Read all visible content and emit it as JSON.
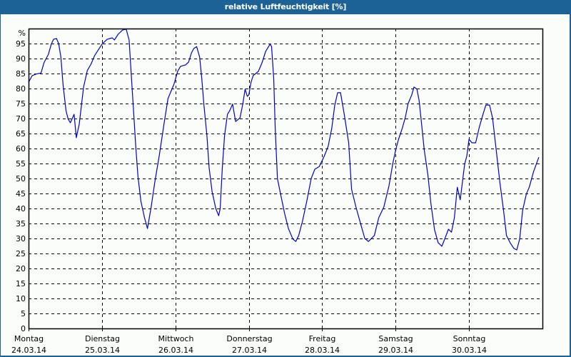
{
  "window": {
    "title": "relative Luftfeuchtigkeit [%]"
  },
  "colors": {
    "frame": "#1c6296",
    "background": "#fbfdfb",
    "line": "#0000cc",
    "grid": "#000000",
    "axis": "#000000"
  },
  "chart_data": {
    "type": "line",
    "title": "relative Luftfeuchtigkeit [%]",
    "xlabel": "",
    "ylabel": "%",
    "ylim": [
      0,
      100
    ],
    "y_ticks": [
      0,
      5,
      10,
      15,
      20,
      25,
      30,
      35,
      40,
      45,
      50,
      55,
      60,
      65,
      70,
      75,
      80,
      85,
      90,
      95
    ],
    "y_unit_label": "%",
    "grid": true,
    "grid_style": "dashed",
    "legend": null,
    "x_categories": [
      {
        "day": "Montag",
        "date": "24.03.14"
      },
      {
        "day": "Dienstag",
        "date": "25.03.14"
      },
      {
        "day": "Mittwoch",
        "date": "26.03.14"
      },
      {
        "day": "Donnerstag",
        "date": "27.03.14"
      },
      {
        "day": "Freitag",
        "date": "28.03.14"
      },
      {
        "day": "Samstag",
        "date": "29.03.14"
      },
      {
        "day": "Sonntag",
        "date": "30.03.14"
      }
    ],
    "x_unit": "days since 24.03.14 00:00",
    "series": [
      {
        "name": "relative Luftfeuchtigkeit",
        "points": [
          [
            0.0,
            82.1
          ],
          [
            0.05,
            84.3
          ],
          [
            0.1,
            84.8
          ],
          [
            0.17,
            85.2
          ],
          [
            0.21,
            88.6
          ],
          [
            0.27,
            91.4
          ],
          [
            0.31,
            94.8
          ],
          [
            0.34,
            96.4
          ],
          [
            0.38,
            96.7
          ],
          [
            0.41,
            95.0
          ],
          [
            0.44,
            90.5
          ],
          [
            0.47,
            81.4
          ],
          [
            0.51,
            72.6
          ],
          [
            0.54,
            69.8
          ],
          [
            0.57,
            68.6
          ],
          [
            0.62,
            71.4
          ],
          [
            0.65,
            63.6
          ],
          [
            0.69,
            68.1
          ],
          [
            0.75,
            80.5
          ],
          [
            0.8,
            86.0
          ],
          [
            0.85,
            88.1
          ],
          [
            0.9,
            91.0
          ],
          [
            1.0,
            94.8
          ],
          [
            1.07,
            96.4
          ],
          [
            1.14,
            96.9
          ],
          [
            1.17,
            96.2
          ],
          [
            1.22,
            98.1
          ],
          [
            1.28,
            99.5
          ],
          [
            1.33,
            99.8
          ],
          [
            1.37,
            96.2
          ],
          [
            1.39,
            88.1
          ],
          [
            1.43,
            72.6
          ],
          [
            1.46,
            60.7
          ],
          [
            1.49,
            50.7
          ],
          [
            1.53,
            42.4
          ],
          [
            1.58,
            36.9
          ],
          [
            1.62,
            33.3
          ],
          [
            1.67,
            40.5
          ],
          [
            1.72,
            48.8
          ],
          [
            1.78,
            57.6
          ],
          [
            1.85,
            69.0
          ],
          [
            1.9,
            76.7
          ],
          [
            1.98,
            81.4
          ],
          [
            2.03,
            85.7
          ],
          [
            2.07,
            87.4
          ],
          [
            2.14,
            87.9
          ],
          [
            2.18,
            88.8
          ],
          [
            2.22,
            91.9
          ],
          [
            2.25,
            93.3
          ],
          [
            2.29,
            94.0
          ],
          [
            2.33,
            90.5
          ],
          [
            2.36,
            83.3
          ],
          [
            2.39,
            74.3
          ],
          [
            2.43,
            64.3
          ],
          [
            2.46,
            53.6
          ],
          [
            2.5,
            45.7
          ],
          [
            2.55,
            40.0
          ],
          [
            2.59,
            37.6
          ],
          [
            2.61,
            40.0
          ],
          [
            2.64,
            53.6
          ],
          [
            2.67,
            64.3
          ],
          [
            2.71,
            71.4
          ],
          [
            2.74,
            72.6
          ],
          [
            2.78,
            74.8
          ],
          [
            2.82,
            69.0
          ],
          [
            2.88,
            70.2
          ],
          [
            2.92,
            75.0
          ],
          [
            2.95,
            79.8
          ],
          [
            2.98,
            77.4
          ],
          [
            3.0,
            77.9
          ],
          [
            3.03,
            82.1
          ],
          [
            3.06,
            84.3
          ],
          [
            3.13,
            85.7
          ],
          [
            3.18,
            88.6
          ],
          [
            3.23,
            92.4
          ],
          [
            3.29,
            94.8
          ],
          [
            3.31,
            94.0
          ],
          [
            3.34,
            83.3
          ],
          [
            3.36,
            66.7
          ],
          [
            3.39,
            50.0
          ],
          [
            3.44,
            44.0
          ],
          [
            3.49,
            38.1
          ],
          [
            3.54,
            33.3
          ],
          [
            3.6,
            29.8
          ],
          [
            3.64,
            29.0
          ],
          [
            3.68,
            31.0
          ],
          [
            3.73,
            35.7
          ],
          [
            3.79,
            42.4
          ],
          [
            3.85,
            50.0
          ],
          [
            3.9,
            53.1
          ],
          [
            3.96,
            54.0
          ],
          [
            4.0,
            56.0
          ],
          [
            4.03,
            57.6
          ],
          [
            4.08,
            60.7
          ],
          [
            4.13,
            66.7
          ],
          [
            4.17,
            74.3
          ],
          [
            4.21,
            78.6
          ],
          [
            4.25,
            78.6
          ],
          [
            4.3,
            71.4
          ],
          [
            4.36,
            61.9
          ],
          [
            4.4,
            46.4
          ],
          [
            4.46,
            40.5
          ],
          [
            4.52,
            35.2
          ],
          [
            4.58,
            30.0
          ],
          [
            4.63,
            29.0
          ],
          [
            4.71,
            31.0
          ],
          [
            4.77,
            36.9
          ],
          [
            4.84,
            40.5
          ],
          [
            4.91,
            47.6
          ],
          [
            4.96,
            54.8
          ],
          [
            5.0,
            59.5
          ],
          [
            5.04,
            63.1
          ],
          [
            5.09,
            66.7
          ],
          [
            5.13,
            70.2
          ],
          [
            5.17,
            75.0
          ],
          [
            5.22,
            77.9
          ],
          [
            5.25,
            80.5
          ],
          [
            5.29,
            79.8
          ],
          [
            5.32,
            76.0
          ],
          [
            5.35,
            69.0
          ],
          [
            5.39,
            59.5
          ],
          [
            5.44,
            51.2
          ],
          [
            5.48,
            41.7
          ],
          [
            5.53,
            32.9
          ],
          [
            5.58,
            28.6
          ],
          [
            5.63,
            27.4
          ],
          [
            5.68,
            30.5
          ],
          [
            5.72,
            33.1
          ],
          [
            5.76,
            32.1
          ],
          [
            5.8,
            36.9
          ],
          [
            5.84,
            47.1
          ],
          [
            5.88,
            42.9
          ],
          [
            5.91,
            48.8
          ],
          [
            5.94,
            54.8
          ],
          [
            5.97,
            57.6
          ],
          [
            6.0,
            63.1
          ],
          [
            6.04,
            61.9
          ],
          [
            6.09,
            61.9
          ],
          [
            6.14,
            67.1
          ],
          [
            6.19,
            71.4
          ],
          [
            6.23,
            74.5
          ],
          [
            6.28,
            74.5
          ],
          [
            6.32,
            70.2
          ],
          [
            6.37,
            59.5
          ],
          [
            6.42,
            48.8
          ],
          [
            6.47,
            39.3
          ],
          [
            6.51,
            31.0
          ],
          [
            6.56,
            28.6
          ],
          [
            6.61,
            26.7
          ],
          [
            6.65,
            26.2
          ],
          [
            6.69,
            29.8
          ],
          [
            6.73,
            39.3
          ],
          [
            6.78,
            44.8
          ],
          [
            6.82,
            47.1
          ],
          [
            6.88,
            52.4
          ],
          [
            6.95,
            57.1
          ]
        ]
      }
    ]
  }
}
